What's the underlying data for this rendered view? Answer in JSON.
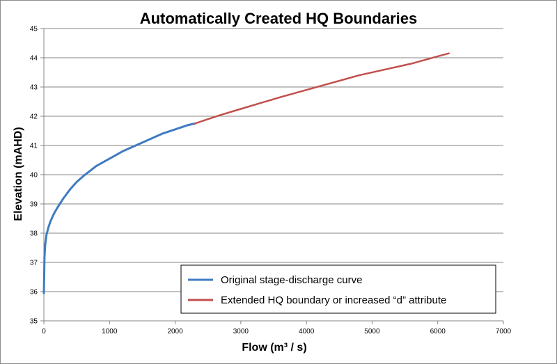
{
  "chart_data": {
    "type": "line",
    "title": "Automatically Created HQ Boundaries",
    "xlabel": "Flow (m³ / s)",
    "ylabel": "Elevation (mAHD)",
    "xlim": [
      0,
      7000
    ],
    "ylim": [
      35,
      45
    ],
    "xticks": [
      0,
      1000,
      2000,
      3000,
      4000,
      5000,
      6000,
      7000
    ],
    "yticks": [
      35,
      36,
      37,
      38,
      39,
      40,
      41,
      42,
      43,
      44,
      45
    ],
    "grid": "horizontal",
    "legend_position": "bottom-right",
    "series": [
      {
        "name": "Original stage-discharge curve",
        "color": "#3f7bc1",
        "x": [
          0,
          5,
          10,
          20,
          40,
          70,
          100,
          150,
          200,
          300,
          400,
          500,
          600,
          800,
          1000,
          1200,
          1400,
          1600,
          1800,
          2000,
          2200,
          2300
        ],
        "y": [
          35.95,
          36.6,
          37.2,
          37.6,
          37.95,
          38.2,
          38.4,
          38.65,
          38.85,
          39.2,
          39.5,
          39.75,
          39.95,
          40.3,
          40.55,
          40.8,
          41.0,
          41.2,
          41.4,
          41.55,
          41.7,
          41.75
        ]
      },
      {
        "name": "Extended HQ boundary or increased “d” attribute",
        "color": "#c0504d",
        "x": [
          2300,
          2500,
          2700,
          3000,
          3300,
          3600,
          4000,
          4400,
          4800,
          5200,
          5600,
          6000,
          6170
        ],
        "y": [
          41.75,
          41.9,
          42.05,
          42.25,
          42.45,
          42.65,
          42.9,
          43.15,
          43.4,
          43.6,
          43.8,
          44.05,
          44.15
        ]
      }
    ]
  }
}
